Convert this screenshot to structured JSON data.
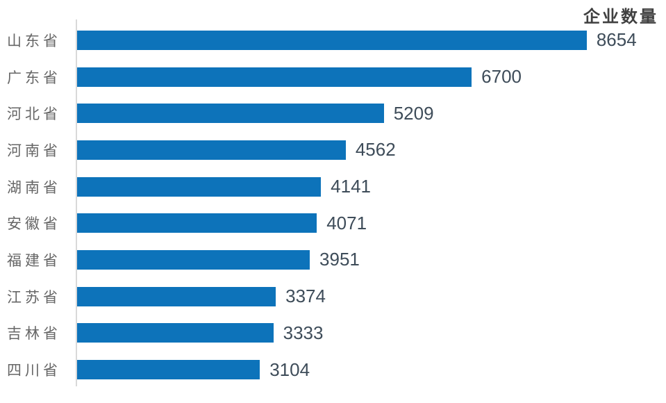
{
  "chart_data": {
    "type": "bar",
    "orientation": "horizontal",
    "title": "企业数量",
    "categories": [
      "山东省",
      "广东省",
      "河北省",
      "河南省",
      "湖南省",
      "安徽省",
      "福建省",
      "江苏省",
      "吉林省",
      "四川省"
    ],
    "values": [
      8654,
      6700,
      5209,
      4562,
      4141,
      4071,
      3951,
      3374,
      3333,
      3104
    ],
    "xlabel": "",
    "ylabel": "",
    "xlim": [
      0,
      10000
    ],
    "grid": "off",
    "legend": "none",
    "data_labels": "outside-end",
    "bar_color": "#0d73ba",
    "axis_line_color": "#d9d9d9",
    "title_color": "#404040",
    "category_label_color": "#666666",
    "value_label_color": "#3e4c59"
  }
}
